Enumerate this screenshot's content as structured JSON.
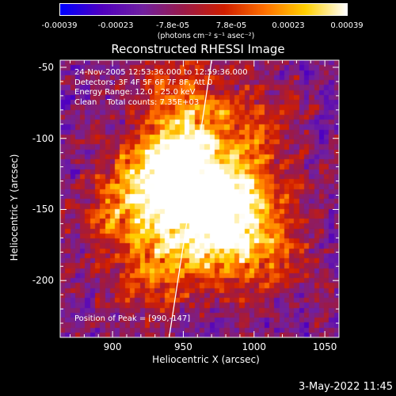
{
  "colorbar": {
    "tick_labels": [
      "-0.00039",
      "-0.00023",
      "-7.8e-05",
      "7.8e-05",
      "0.00023",
      "0.00039"
    ],
    "unit_label": "(photons cm⁻² s⁻¹ asec⁻²)",
    "range": [
      -0.00039,
      0.00039
    ],
    "colormap": [
      "#0000ff",
      "#5000c0",
      "#7020a0",
      "#9a1a4a",
      "#d01e00",
      "#ff7000",
      "#ffd000",
      "#ffffff"
    ]
  },
  "chart_data": {
    "type": "heatmap",
    "title": "Reconstructed RHESSI Image",
    "xlabel": "Heliocentric X (arcsec)",
    "ylabel": "Heliocentric Y (arcsec)",
    "xlim": [
      863,
      1060
    ],
    "ylim": [
      -240,
      -45
    ],
    "x_ticks": [
      "900",
      "950",
      "1000",
      "1050"
    ],
    "y_ticks": [
      "-50",
      "-100",
      "-150",
      "-200"
    ],
    "x_tick_values": [
      900,
      950,
      1000,
      1050
    ],
    "y_tick_values": [
      -50,
      -100,
      -150,
      -200
    ],
    "info_lines": [
      "24-Nov-2005 12:53:36.000 to 12:59:36.000",
      "Detectors: 3F 4F 5F 6F 7F 8F, Att 0",
      "Energy Range: 12.0 - 25.0 keV",
      "Clean    Total counts: 7.35E+03"
    ],
    "peak_label": "Position of Peak = [990,-147]",
    "peak": [
      990,
      -147
    ],
    "limb_line": [
      [
        940,
        -240
      ],
      [
        970,
        -45
      ]
    ],
    "sources": [
      {
        "x": 938,
        "y": -127,
        "peak": 0.95
      },
      {
        "x": 955,
        "y": -113,
        "peak": 0.75
      },
      {
        "x": 990,
        "y": -147,
        "peak": 1.0
      },
      {
        "x": 960,
        "y": -170,
        "peak": 0.8
      },
      {
        "x": 910,
        "y": -150,
        "peak": 0.6
      },
      {
        "x": 950,
        "y": -68,
        "peak": 0.55
      },
      {
        "x": 1000,
        "y": -95,
        "peak": 0.45
      },
      {
        "x": 1005,
        "y": -180,
        "peak": 0.5
      },
      {
        "x": 930,
        "y": -195,
        "peak": 0.45
      }
    ]
  },
  "timestamp": "3-May-2022 11:45"
}
